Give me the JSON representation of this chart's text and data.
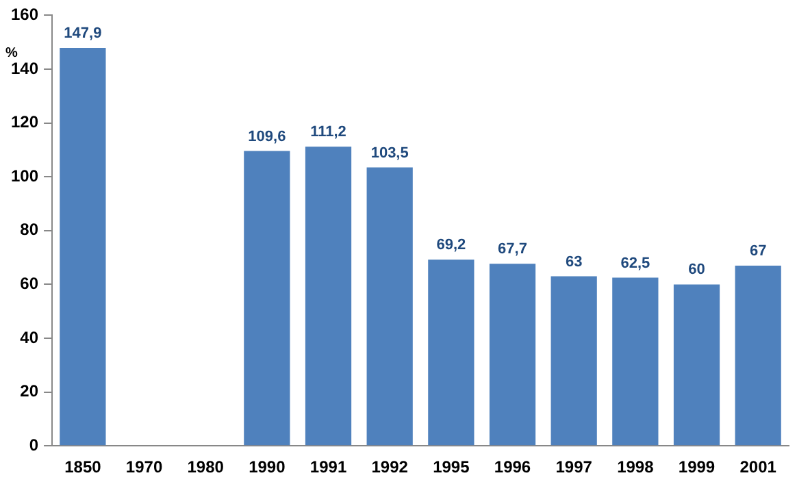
{
  "chart_data": {
    "type": "bar",
    "ylabel": "%",
    "categories": [
      "1850",
      "1970",
      "1980",
      "1990",
      "1991",
      "1992",
      "1995",
      "1996",
      "1997",
      "1998",
      "1999",
      "2001"
    ],
    "values": [
      147.9,
      null,
      null,
      109.6,
      111.2,
      103.5,
      69.2,
      67.7,
      63,
      62.5,
      60,
      67
    ],
    "value_labels": [
      "147,9",
      null,
      null,
      "109,6",
      "111,2",
      "103,5",
      "69,2",
      "67,7",
      "63",
      "62,5",
      "60",
      "67"
    ],
    "color": "#4f81bd",
    "ylim": [
      0,
      160
    ],
    "yticks": [
      0,
      20,
      40,
      60,
      80,
      100,
      120,
      140,
      160
    ],
    "grid": false,
    "legend": false
  }
}
